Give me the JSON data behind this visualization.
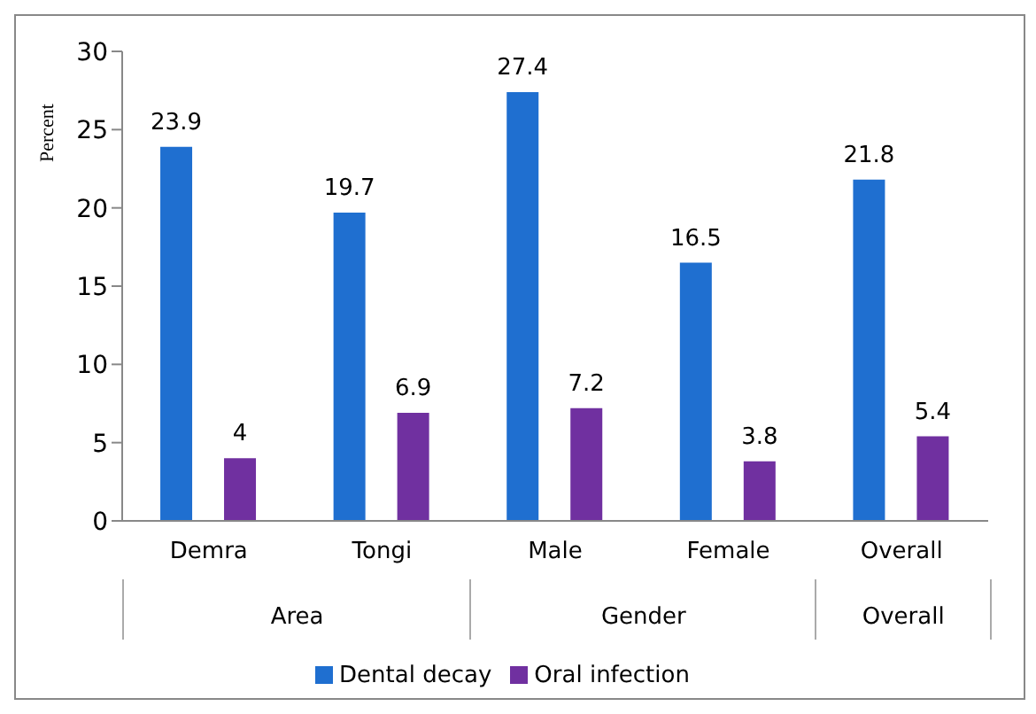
{
  "chart_data": {
    "type": "bar",
    "ylabel": "Percent",
    "categories": [
      "Demra",
      "Tongi",
      "Male",
      "Female",
      "Overall"
    ],
    "series": [
      {
        "name": "Dental decay",
        "color": "#1f6fd0",
        "values": [
          23.9,
          19.7,
          27.4,
          16.5,
          21.8
        ]
      },
      {
        "name": "Oral infection",
        "color": "#7030a0",
        "values": [
          4,
          6.9,
          7.2,
          3.8,
          5.4
        ]
      }
    ],
    "annotations": [
      "Area",
      "Gender",
      "Overall"
    ],
    "ylim": [
      0,
      30
    ],
    "yticks": [
      0,
      5,
      10,
      15,
      20,
      25,
      30
    ],
    "data_labels": true,
    "legend": "bottom",
    "grid": false
  }
}
